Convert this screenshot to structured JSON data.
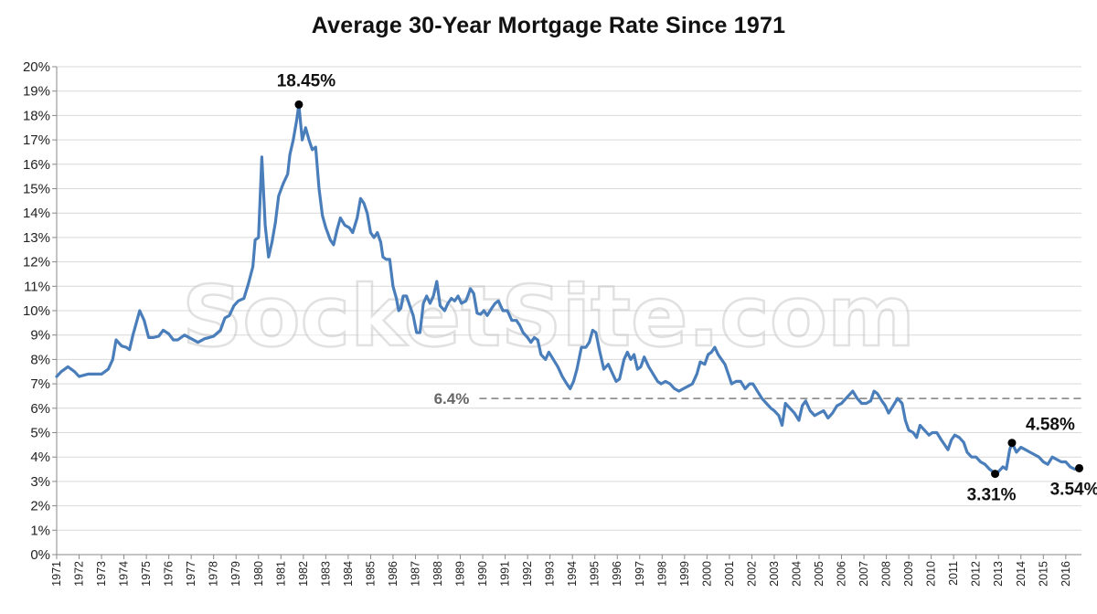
{
  "chart_data": {
    "type": "line",
    "title": "Average 30-Year Mortgage Rate Since 1971",
    "xlabel": "",
    "ylabel": "",
    "ylim": [
      0,
      20
    ],
    "xlim": [
      1971,
      2016.7
    ],
    "y_tick_labels": [
      "0%",
      "1%",
      "2%",
      "3%",
      "4%",
      "5%",
      "6%",
      "7%",
      "8%",
      "9%",
      "10%",
      "11%",
      "12%",
      "13%",
      "14%",
      "15%",
      "16%",
      "17%",
      "18%",
      "19%",
      "20%"
    ],
    "x_tick_labels": [
      "1971",
      "1972",
      "1973",
      "1974",
      "1975",
      "1976",
      "1977",
      "1978",
      "1979",
      "1980",
      "1981",
      "1982",
      "1983",
      "1984",
      "1985",
      "1986",
      "1987",
      "1988",
      "1989",
      "1990",
      "1991",
      "1992",
      "1993",
      "1994",
      "1995",
      "1996",
      "1997",
      "1998",
      "1999",
      "2000",
      "2001",
      "2002",
      "2003",
      "2004",
      "2005",
      "2006",
      "2007",
      "2008",
      "2009",
      "2010",
      "2011",
      "2012",
      "2013",
      "2014",
      "2015",
      "2016"
    ],
    "grid": true,
    "line_color": "#4a7ebb",
    "series": [
      {
        "values": [
          [
            1971.0,
            7.3
          ],
          [
            1971.2,
            7.5
          ],
          [
            1971.5,
            7.7
          ],
          [
            1971.8,
            7.5
          ],
          [
            1972.0,
            7.3
          ],
          [
            1972.4,
            7.4
          ],
          [
            1972.8,
            7.4
          ],
          [
            1973.0,
            7.4
          ],
          [
            1973.3,
            7.6
          ],
          [
            1973.5,
            8.0
          ],
          [
            1973.65,
            8.8
          ],
          [
            1973.9,
            8.55
          ],
          [
            1974.1,
            8.5
          ],
          [
            1974.25,
            8.4
          ],
          [
            1974.4,
            9.0
          ],
          [
            1974.55,
            9.5
          ],
          [
            1974.7,
            10.0
          ],
          [
            1974.9,
            9.6
          ],
          [
            1975.1,
            8.9
          ],
          [
            1975.3,
            8.9
          ],
          [
            1975.55,
            8.95
          ],
          [
            1975.75,
            9.2
          ],
          [
            1976.0,
            9.05
          ],
          [
            1976.2,
            8.8
          ],
          [
            1976.4,
            8.8
          ],
          [
            1976.7,
            9.0
          ],
          [
            1977.0,
            8.85
          ],
          [
            1977.3,
            8.7
          ],
          [
            1977.6,
            8.85
          ],
          [
            1977.8,
            8.9
          ],
          [
            1978.0,
            8.95
          ],
          [
            1978.3,
            9.2
          ],
          [
            1978.5,
            9.7
          ],
          [
            1978.7,
            9.8
          ],
          [
            1978.9,
            10.2
          ],
          [
            1979.1,
            10.4
          ],
          [
            1979.35,
            10.5
          ],
          [
            1979.55,
            11.1
          ],
          [
            1979.75,
            11.8
          ],
          [
            1979.85,
            12.9
          ],
          [
            1980.0,
            13.0
          ],
          [
            1980.15,
            16.3
          ],
          [
            1980.3,
            13.5
          ],
          [
            1980.45,
            12.2
          ],
          [
            1980.6,
            12.8
          ],
          [
            1980.75,
            13.6
          ],
          [
            1980.9,
            14.7
          ],
          [
            1981.1,
            15.2
          ],
          [
            1981.3,
            15.6
          ],
          [
            1981.4,
            16.4
          ],
          [
            1981.55,
            17.0
          ],
          [
            1981.7,
            17.8
          ],
          [
            1981.8,
            18.45
          ],
          [
            1981.95,
            17.0
          ],
          [
            1982.1,
            17.5
          ],
          [
            1982.25,
            17.0
          ],
          [
            1982.4,
            16.6
          ],
          [
            1982.55,
            16.7
          ],
          [
            1982.7,
            15.0
          ],
          [
            1982.85,
            13.9
          ],
          [
            1983.0,
            13.4
          ],
          [
            1983.2,
            12.9
          ],
          [
            1983.35,
            12.7
          ],
          [
            1983.5,
            13.3
          ],
          [
            1983.65,
            13.8
          ],
          [
            1983.85,
            13.5
          ],
          [
            1984.05,
            13.4
          ],
          [
            1984.2,
            13.2
          ],
          [
            1984.4,
            13.8
          ],
          [
            1984.55,
            14.6
          ],
          [
            1984.7,
            14.4
          ],
          [
            1984.85,
            14.0
          ],
          [
            1985.0,
            13.2
          ],
          [
            1985.15,
            13.0
          ],
          [
            1985.3,
            13.2
          ],
          [
            1985.45,
            12.8
          ],
          [
            1985.55,
            12.2
          ],
          [
            1985.7,
            12.1
          ],
          [
            1985.85,
            12.1
          ],
          [
            1986.0,
            11.0
          ],
          [
            1986.15,
            10.5
          ],
          [
            1986.25,
            10.0
          ],
          [
            1986.35,
            10.1
          ],
          [
            1986.45,
            10.6
          ],
          [
            1986.6,
            10.6
          ],
          [
            1986.75,
            10.2
          ],
          [
            1986.9,
            9.8
          ],
          [
            1987.05,
            9.1
          ],
          [
            1987.2,
            9.1
          ],
          [
            1987.35,
            10.3
          ],
          [
            1987.5,
            10.6
          ],
          [
            1987.65,
            10.3
          ],
          [
            1987.8,
            10.6
          ],
          [
            1987.95,
            11.2
          ],
          [
            1988.1,
            10.2
          ],
          [
            1988.3,
            10.0
          ],
          [
            1988.45,
            10.3
          ],
          [
            1988.6,
            10.5
          ],
          [
            1988.75,
            10.4
          ],
          [
            1988.9,
            10.6
          ],
          [
            1989.05,
            10.3
          ],
          [
            1989.25,
            10.4
          ],
          [
            1989.45,
            10.9
          ],
          [
            1989.6,
            10.7
          ],
          [
            1989.75,
            9.9
          ],
          [
            1989.9,
            9.85
          ],
          [
            1990.05,
            10.0
          ],
          [
            1990.2,
            9.8
          ],
          [
            1990.4,
            10.1
          ],
          [
            1990.55,
            10.3
          ],
          [
            1990.7,
            10.4
          ],
          [
            1990.9,
            10.0
          ],
          [
            1991.1,
            10.0
          ],
          [
            1991.3,
            9.6
          ],
          [
            1991.5,
            9.6
          ],
          [
            1991.65,
            9.4
          ],
          [
            1991.8,
            9.1
          ],
          [
            1992.0,
            8.9
          ],
          [
            1992.15,
            8.7
          ],
          [
            1992.3,
            8.9
          ],
          [
            1992.45,
            8.8
          ],
          [
            1992.6,
            8.2
          ],
          [
            1992.8,
            8.0
          ],
          [
            1992.95,
            8.3
          ],
          [
            1993.15,
            8.0
          ],
          [
            1993.35,
            7.7
          ],
          [
            1993.55,
            7.3
          ],
          [
            1993.75,
            7.0
          ],
          [
            1993.9,
            6.8
          ],
          [
            1994.05,
            7.1
          ],
          [
            1994.2,
            7.6
          ],
          [
            1994.4,
            8.5
          ],
          [
            1994.6,
            8.5
          ],
          [
            1994.75,
            8.7
          ],
          [
            1994.9,
            9.2
          ],
          [
            1995.05,
            9.1
          ],
          [
            1995.2,
            8.4
          ],
          [
            1995.4,
            7.6
          ],
          [
            1995.6,
            7.8
          ],
          [
            1995.8,
            7.4
          ],
          [
            1995.95,
            7.1
          ],
          [
            1996.1,
            7.2
          ],
          [
            1996.3,
            8.0
          ],
          [
            1996.45,
            8.3
          ],
          [
            1996.6,
            8.0
          ],
          [
            1996.75,
            8.2
          ],
          [
            1996.9,
            7.6
          ],
          [
            1997.05,
            7.7
          ],
          [
            1997.2,
            8.1
          ],
          [
            1997.4,
            7.7
          ],
          [
            1997.6,
            7.4
          ],
          [
            1997.8,
            7.1
          ],
          [
            1997.95,
            7.0
          ],
          [
            1998.15,
            7.1
          ],
          [
            1998.35,
            7.0
          ],
          [
            1998.55,
            6.8
          ],
          [
            1998.75,
            6.7
          ],
          [
            1998.95,
            6.8
          ],
          [
            1999.15,
            6.9
          ],
          [
            1999.35,
            7.0
          ],
          [
            1999.55,
            7.4
          ],
          [
            1999.7,
            7.9
          ],
          [
            1999.9,
            7.8
          ],
          [
            2000.05,
            8.2
          ],
          [
            2000.2,
            8.3
          ],
          [
            2000.35,
            8.5
          ],
          [
            2000.5,
            8.2
          ],
          [
            2000.65,
            8.0
          ],
          [
            2000.8,
            7.8
          ],
          [
            2000.95,
            7.4
          ],
          [
            2001.1,
            7.0
          ],
          [
            2001.3,
            7.1
          ],
          [
            2001.5,
            7.1
          ],
          [
            2001.7,
            6.8
          ],
          [
            2001.9,
            7.0
          ],
          [
            2002.05,
            7.0
          ],
          [
            2002.25,
            6.7
          ],
          [
            2002.45,
            6.4
          ],
          [
            2002.65,
            6.2
          ],
          [
            2002.85,
            6.0
          ],
          [
            2003.0,
            5.9
          ],
          [
            2003.2,
            5.7
          ],
          [
            2003.35,
            5.3
          ],
          [
            2003.5,
            6.2
          ],
          [
            2003.7,
            6.0
          ],
          [
            2003.9,
            5.8
          ],
          [
            2004.1,
            5.5
          ],
          [
            2004.25,
            6.1
          ],
          [
            2004.4,
            6.3
          ],
          [
            2004.6,
            5.9
          ],
          [
            2004.8,
            5.7
          ],
          [
            2005.0,
            5.8
          ],
          [
            2005.2,
            5.9
          ],
          [
            2005.4,
            5.6
          ],
          [
            2005.6,
            5.8
          ],
          [
            2005.8,
            6.1
          ],
          [
            2006.0,
            6.2
          ],
          [
            2006.2,
            6.4
          ],
          [
            2006.4,
            6.6
          ],
          [
            2006.5,
            6.7
          ],
          [
            2006.7,
            6.4
          ],
          [
            2006.9,
            6.2
          ],
          [
            2007.1,
            6.2
          ],
          [
            2007.3,
            6.3
          ],
          [
            2007.45,
            6.7
          ],
          [
            2007.6,
            6.6
          ],
          [
            2007.8,
            6.3
          ],
          [
            2007.95,
            6.1
          ],
          [
            2008.1,
            5.8
          ],
          [
            2008.3,
            6.1
          ],
          [
            2008.5,
            6.4
          ],
          [
            2008.7,
            6.2
          ],
          [
            2008.85,
            5.5
          ],
          [
            2009.0,
            5.1
          ],
          [
            2009.2,
            5.0
          ],
          [
            2009.35,
            4.8
          ],
          [
            2009.5,
            5.3
          ],
          [
            2009.7,
            5.1
          ],
          [
            2009.9,
            4.9
          ],
          [
            2010.05,
            5.0
          ],
          [
            2010.25,
            5.0
          ],
          [
            2010.45,
            4.7
          ],
          [
            2010.6,
            4.5
          ],
          [
            2010.75,
            4.3
          ],
          [
            2010.9,
            4.7
          ],
          [
            2011.05,
            4.9
          ],
          [
            2011.25,
            4.8
          ],
          [
            2011.45,
            4.6
          ],
          [
            2011.6,
            4.2
          ],
          [
            2011.8,
            4.0
          ],
          [
            2012.0,
            4.0
          ],
          [
            2012.2,
            3.8
          ],
          [
            2012.4,
            3.7
          ],
          [
            2012.6,
            3.5
          ],
          [
            2012.75,
            3.4
          ],
          [
            2012.85,
            3.31
          ],
          [
            2013.0,
            3.4
          ],
          [
            2013.2,
            3.6
          ],
          [
            2013.35,
            3.5
          ],
          [
            2013.5,
            4.3
          ],
          [
            2013.6,
            4.58
          ],
          [
            2013.8,
            4.2
          ],
          [
            2014.0,
            4.4
          ],
          [
            2014.2,
            4.3
          ],
          [
            2014.4,
            4.2
          ],
          [
            2014.6,
            4.1
          ],
          [
            2014.8,
            4.0
          ],
          [
            2015.0,
            3.8
          ],
          [
            2015.2,
            3.7
          ],
          [
            2015.4,
            4.0
          ],
          [
            2015.6,
            3.9
          ],
          [
            2015.8,
            3.8
          ],
          [
            2016.0,
            3.8
          ],
          [
            2016.2,
            3.6
          ],
          [
            2016.4,
            3.5
          ],
          [
            2016.6,
            3.54
          ]
        ]
      }
    ],
    "reference_line": {
      "value": 6.4,
      "label": "6.4%"
    },
    "annotations": [
      {
        "x": 1981.8,
        "y": 18.45,
        "label": "18.45%"
      },
      {
        "x": 2012.85,
        "y": 3.31,
        "label": "3.31%"
      },
      {
        "x": 2013.6,
        "y": 4.58,
        "label": "4.58%"
      },
      {
        "x": 2016.6,
        "y": 3.54,
        "label": "3.54%"
      }
    ]
  },
  "watermark": "SocketSite.com"
}
